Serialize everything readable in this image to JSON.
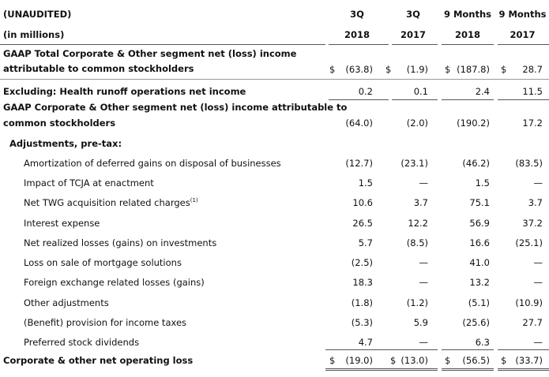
{
  "header": {
    "row1_label": "(UNAUDITED)",
    "row2_label": "(in millions)",
    "columns": [
      {
        "line1": "3Q",
        "line2": "2018"
      },
      {
        "line1": "3Q",
        "line2": "2017"
      },
      {
        "line1": "9 Months",
        "line2": "2018"
      },
      {
        "line1": "9 Months",
        "line2": "2017"
      }
    ]
  },
  "currency_symbol": "$",
  "rows": [
    {
      "label_line1": "GAAP Total Corporate & Other segment net (loss) income",
      "label_line2": "attributable to common stockholders",
      "values": [
        "(63.8)",
        "(1.9)",
        "(187.8)",
        "28.7"
      ]
    },
    {
      "label": "Excluding: Health runoff operations net income",
      "values": [
        "0.2",
        "0.1",
        "2.4",
        "11.5"
      ]
    },
    {
      "label_line1": "GAAP Corporate & Other segment net (loss) income attributable to",
      "label_line2": "common stockholders",
      "values": [
        "(64.0)",
        "(2.0)",
        "(190.2)",
        "17.2"
      ]
    },
    {
      "label": "Adjustments, pre-tax:"
    },
    {
      "label": "Amortization of deferred gains on disposal of businesses",
      "values": [
        "(12.7)",
        "(23.1)",
        "(46.2)",
        "(83.5)"
      ]
    },
    {
      "label": "Impact of TCJA at enactment",
      "values": [
        "1.5",
        "—",
        "1.5",
        "—"
      ]
    },
    {
      "label": "Net TWG acquisition related charges",
      "footnote": "(1)",
      "values": [
        "10.6",
        "3.7",
        "75.1",
        "3.7"
      ]
    },
    {
      "label": "Interest expense",
      "values": [
        "26.5",
        "12.2",
        "56.9",
        "37.2"
      ]
    },
    {
      "label": "Net realized losses (gains) on investments",
      "values": [
        "5.7",
        "(8.5)",
        "16.6",
        "(25.1)"
      ]
    },
    {
      "label": "Loss on sale of mortgage solutions",
      "values": [
        "(2.5)",
        "—",
        "41.0",
        "—"
      ]
    },
    {
      "label": "Foreign exchange related losses (gains)",
      "values": [
        "18.3",
        "—",
        "13.2",
        "—"
      ]
    },
    {
      "label": "Other adjustments",
      "values": [
        "(1.8)",
        "(1.2)",
        "(5.1)",
        "(10.9)"
      ]
    },
    {
      "label": "(Benefit) provision for income taxes",
      "values": [
        "(5.3)",
        "5.9",
        "(25.6)",
        "27.7"
      ]
    },
    {
      "label": "Preferred stock dividends",
      "values": [
        "4.7",
        "—",
        "6.3",
        "—"
      ]
    },
    {
      "label": "Corporate & other net operating loss",
      "values": [
        "(19.0)",
        "(13.0)",
        "(56.5)",
        "(33.7)"
      ]
    }
  ]
}
